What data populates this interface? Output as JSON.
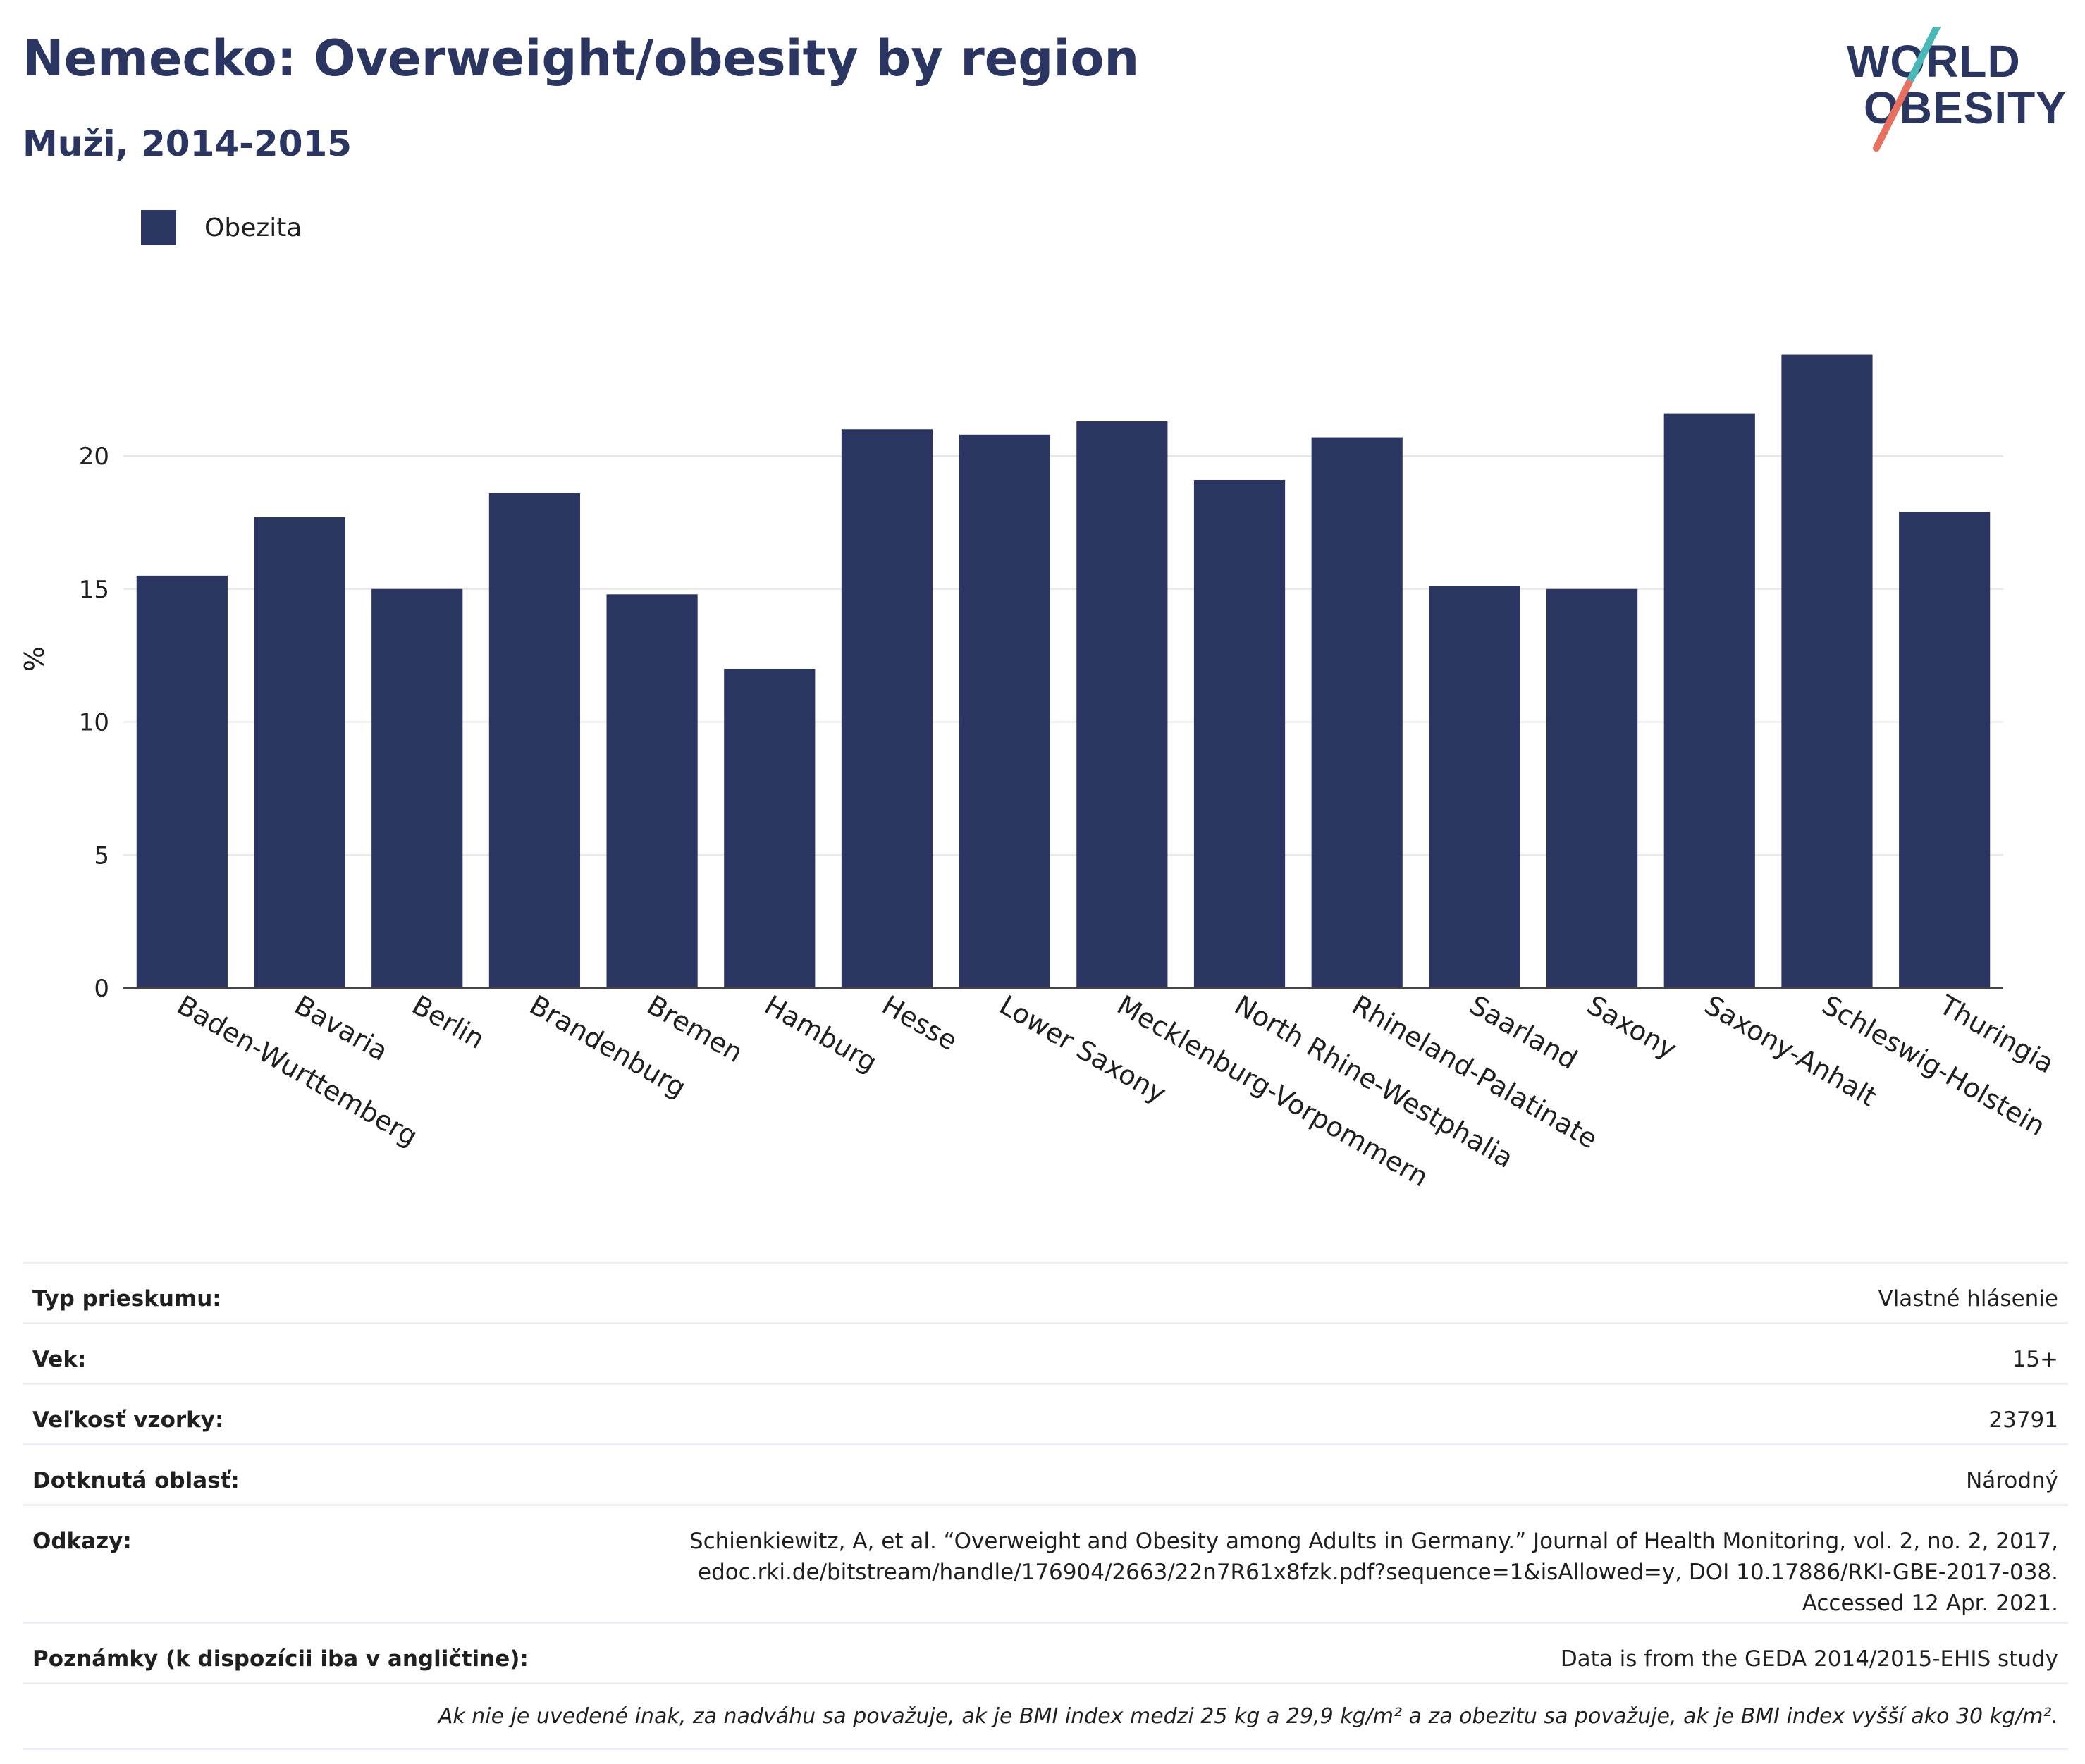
{
  "header": {
    "title": "Nemecko: Overweight/obesity by region",
    "subtitle": "Muži, 2014-2015"
  },
  "logo": {
    "line1": "WORLD",
    "line2": "OBESITY"
  },
  "colors": {
    "bar": "#2a3561",
    "title": "#2a3561",
    "logo_slash_top": "#4bb8b8",
    "logo_slash_bottom": "#e8705f"
  },
  "legend": {
    "position": "top-left",
    "items": [
      {
        "label": "Obezita",
        "color": "#2a3561"
      }
    ]
  },
  "chart_data": {
    "type": "bar",
    "title": "Nemecko: Overweight/obesity by region",
    "subtitle": "Muži, 2014-2015",
    "xlabel": "",
    "ylabel": "%",
    "ylim": [
      0,
      25
    ],
    "yticks": [
      0,
      5,
      10,
      15,
      20
    ],
    "grid": true,
    "categories": [
      "Baden-Wurttemberg",
      "Bavaria",
      "Berlin",
      "Brandenburg",
      "Bremen",
      "Hamburg",
      "Hesse",
      "Lower Saxony",
      "Mecklenburg-Vorpommern",
      "North Rhine-Westphalia",
      "Rhineland-Palatinate",
      "Saarland",
      "Saxony",
      "Saxony-Anhalt",
      "Schleswig-Holstein",
      "Thuringia"
    ],
    "series": [
      {
        "name": "Obezita",
        "values": [
          15.5,
          17.7,
          15.0,
          18.6,
          14.8,
          12.0,
          21.0,
          20.8,
          21.3,
          19.1,
          20.7,
          15.1,
          15.0,
          21.6,
          23.8,
          17.9
        ]
      }
    ]
  },
  "info_table": {
    "rows": [
      {
        "key": "Typ prieskumu:",
        "value": [
          "Vlastné hlásenie"
        ]
      },
      {
        "key": "Vek:",
        "value": [
          "15+"
        ]
      },
      {
        "key": "Veľkosť vzorky:",
        "value": [
          "23791"
        ]
      },
      {
        "key": "Dotknutá oblasť:",
        "value": [
          "Národný"
        ]
      },
      {
        "key": "Odkazy:",
        "value": [
          "Schienkiewitz, A, et al. “Overweight and Obesity among Adults in Germany.” Journal of Health Monitoring, vol. 2, no. 2, 2017,",
          "edoc.rki.de/bitstream/handle/176904/2663/22n7R61x8fzk.pdf?sequence=1&isAllowed=y, DOI 10.17886/RKI-GBE-2017-038.",
          "Accessed 12 Apr. 2021."
        ]
      },
      {
        "key": "Poznámky (k dispozícii iba v angličtine):",
        "value": [
          "Data is from the GEDA 2014/2015-EHIS study"
        ]
      }
    ],
    "footnote": "Ak nie je uvedené inak, za nadváhu sa považuje, ak je BMI index medzi 25 kg a 29,9 kg/m² a za obezitu sa považuje, ak je BMI index vyšší ako 30 kg/m²."
  }
}
